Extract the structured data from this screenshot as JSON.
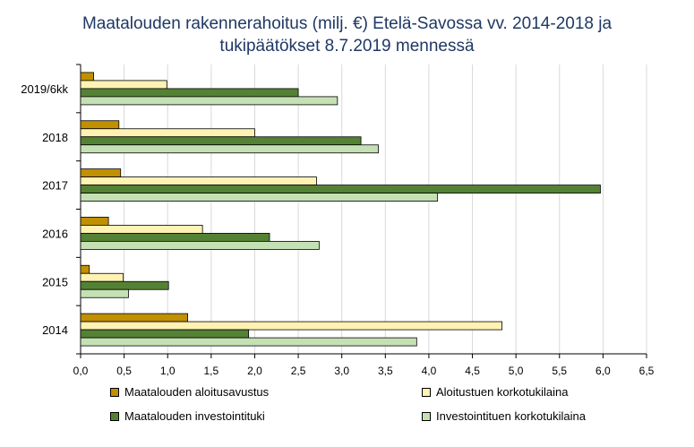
{
  "title_line1": "Maatalouden rakennerahoitus (milj. €) Etelä-Savossa vv. 2014-2018 ja",
  "title_line2": "tukipäätökset 8.7.2019 mennessä",
  "colors": {
    "series1": "#c09000",
    "series2": "#fff2b3",
    "series3": "#548235",
    "series4": "#c5e0b4",
    "title": "#1f3864",
    "grid": "#d9d9d9"
  },
  "chart_data": {
    "type": "bar",
    "orientation": "horizontal",
    "title": "Maatalouden rakennerahoitus (milj. €) Etelä-Savossa vv. 2014-2018 ja tukipäätökset 8.7.2019 mennessä",
    "categories": [
      "2019/6kk",
      "2018",
      "2017",
      "2016",
      "2015",
      "2014"
    ],
    "series": [
      {
        "name": "Maatalouden aloitusavustus",
        "values": [
          0.15,
          0.44,
          0.46,
          0.32,
          0.1,
          1.23
        ]
      },
      {
        "name": "Aloitustuen korkotukilaina",
        "values": [
          0.99,
          2.0,
          2.71,
          1.4,
          0.49,
          4.84
        ]
      },
      {
        "name": "Maatalouden investointituki",
        "values": [
          2.5,
          3.22,
          5.97,
          2.17,
          1.01,
          1.93
        ]
      },
      {
        "name": "Investointituen korkotukilaina",
        "values": [
          2.95,
          3.42,
          4.1,
          2.74,
          0.55,
          3.86
        ]
      }
    ],
    "xlim": [
      0,
      6.5
    ],
    "xticks": [
      "0,0",
      "0,5",
      "1,0",
      "1,5",
      "2,0",
      "2,5",
      "3,0",
      "3,5",
      "4,0",
      "4,5",
      "5,0",
      "5,5",
      "6,0",
      "6,5"
    ],
    "grid": "vertical",
    "legend_position": "bottom"
  },
  "legend": [
    {
      "label": "Maatalouden aloitusavustus"
    },
    {
      "label": "Aloitustuen korkotukilaina"
    },
    {
      "label": "Maatalouden investointituki"
    },
    {
      "label": "Investointituen korkotukilaina"
    }
  ]
}
